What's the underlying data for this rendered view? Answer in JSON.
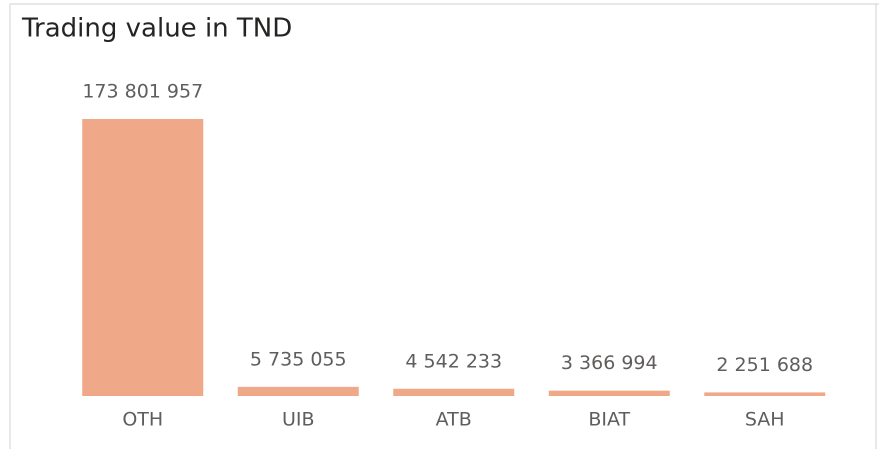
{
  "chart_data": {
    "type": "bar",
    "title": "Trading value in TND",
    "categories": [
      "OTH",
      "UIB",
      "ATB",
      "BIAT",
      "SAH"
    ],
    "values": [
      173801957,
      5735055,
      4542233,
      3366994,
      2251688
    ],
    "value_labels": [
      "173 801 957",
      "5 735 055",
      "4 542 233",
      "3 366 994",
      "2 251 688"
    ],
    "color": "#f0a988"
  }
}
